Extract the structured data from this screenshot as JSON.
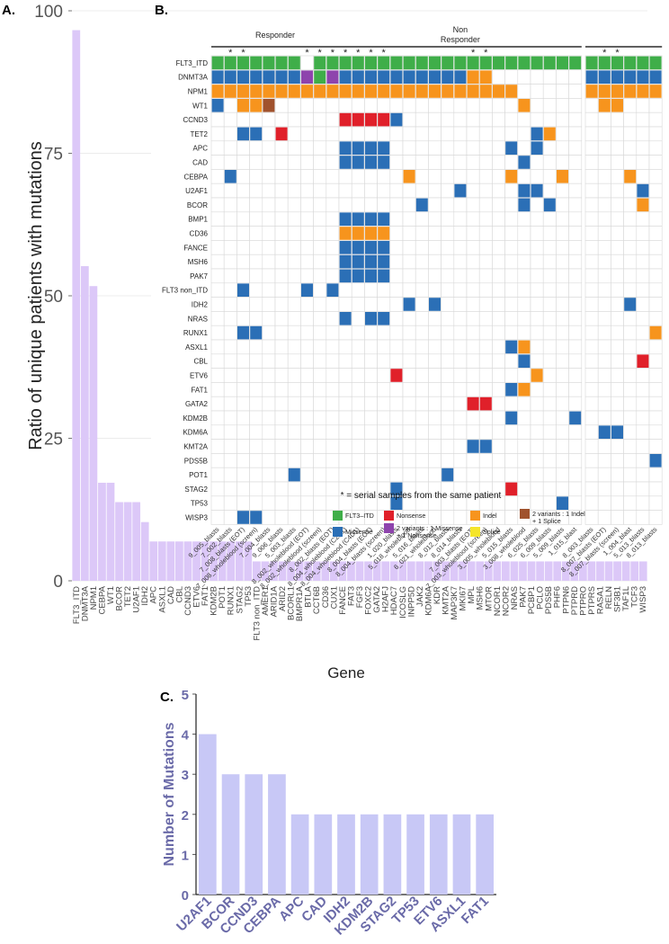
{
  "panel_labels": {
    "a": "A.",
    "b": "B.",
    "c": "C."
  },
  "chart_data": [
    {
      "type": "bar",
      "panel": "A.",
      "title": "",
      "xlabel": "",
      "ylabel": "Ratio of unique patients with mutations",
      "ylim": [
        0,
        100
      ],
      "yticks": [
        0,
        25,
        50,
        75,
        100
      ],
      "bar_color": "#dcc8f8",
      "grid": true,
      "categories": [
        "FLT3_ITD",
        "DNMT3A",
        "NPM1",
        "CEBPA",
        "WT1",
        "BCOR",
        "TET2",
        "U2AF1",
        "IDH2",
        "APC",
        "ASXL1",
        "CAD",
        "CBL",
        "CCND3",
        "ETV6",
        "FAT1",
        "KDM2B",
        "POT1",
        "RUNX1",
        "STAG2",
        "TP53",
        "FLT3 non_ITD",
        "AMER1",
        "ARID1A",
        "ARID2",
        "BCORL1",
        "BMPR1A",
        "BTLA",
        "CCT6B",
        "CD36",
        "CUX1",
        "FANCE",
        "FAT3",
        "FGF3",
        "FOXC2",
        "GATA2",
        "H2AFJ",
        "HDAC7",
        "ICOSLG",
        "INPP5D",
        "JAK2",
        "KDM6A",
        "KDR",
        "KMT2A",
        "MAP3K7",
        "MKI67",
        "MPL",
        "MSH6",
        "MTOR",
        "NCOR1",
        "NCOR2",
        "NRAS",
        "PAK7",
        "PCBP1",
        "PCLO",
        "PDS5B",
        "PHF6",
        "PTPN6",
        "PTPRD",
        "PTPRO",
        "PTPRS",
        "RASA1",
        "RELN",
        "SF3B1",
        "TAF1L",
        "TCF3",
        "WISP3"
      ],
      "values": [
        96.6,
        55.2,
        51.7,
        17.2,
        17.2,
        13.8,
        13.8,
        13.8,
        10.3,
        6.9,
        6.9,
        6.9,
        6.9,
        6.9,
        6.9,
        6.9,
        6.9,
        6.9,
        6.9,
        6.9,
        6.9,
        3.4,
        3.4,
        3.4,
        3.4,
        3.4,
        3.4,
        3.4,
        3.4,
        3.4,
        3.4,
        3.4,
        3.4,
        3.4,
        3.4,
        3.4,
        3.4,
        3.4,
        3.4,
        3.4,
        3.4,
        3.4,
        3.4,
        3.4,
        3.4,
        3.4,
        3.4,
        3.4,
        3.4,
        3.4,
        3.4,
        3.4,
        3.4,
        3.4,
        3.4,
        3.4,
        3.4,
        3.4,
        3.4,
        3.4,
        3.4,
        3.4,
        3.4,
        3.4,
        3.4,
        3.4,
        3.4
      ]
    },
    {
      "type": "heatmap",
      "panel": "B.",
      "groups": [
        {
          "name": "Responder",
          "samples": [
            "9_005_blasts",
            "7_002_blasts",
            "7_008_blasts (EOT)",
            "7_008_wholeblood (screen)",
            "7_004_blasts",
            "9_006_blasts",
            "5_003_blasts",
            "8_002_wholeblood (EOT)",
            "8_002_wholeblood (screen)",
            "8_002_blasts (EOT)"
          ],
          "stars": [
            2,
            3,
            8,
            9,
            10
          ]
        },
        {
          "name": "Non\nResponder",
          "samples": [
            "8_004_wholeblood (C2D1)",
            "8_004_wholeblood (C4D1)",
            "8_004_blasts (EOT)",
            "8_004_blasts (screen)",
            "1_020_blasts",
            "5_018_wholeblood",
            "5_016_blasts",
            "6_021_wholeblood",
            "8_012_blasts",
            "8_014_blasts",
            "7_003_blasts (EOT)",
            "7_003_wholeblood (screen)",
            "3_005_wholeblood",
            "5_015_blasts",
            "3_008_wholeblood",
            "6_025_blasts",
            "6_009_blasts",
            "5_009_blasts",
            "1_015_blast"
          ],
          "stars": [
            1,
            2,
            3,
            4,
            11,
            12
          ]
        },
        {
          "name": "",
          "samples": [
            "8_003_blasts",
            "8_007_blasts (EOT)",
            "8_007_blasts (screen)",
            "1_004_blast",
            "5_013_blasts",
            "8_013_blasts"
          ],
          "stars": [
            2,
            3
          ]
        }
      ],
      "genes": [
        "FLT3_ITD",
        "DNMT3A",
        "NPM1",
        "WT1",
        "CCND3",
        "TET2",
        "APC",
        "CAD",
        "CEBPA",
        "U2AF1",
        "BCOR",
        "BMP1",
        "CD36",
        "FANCE",
        "MSH6",
        "PAK7",
        "FLT3 non_ITD",
        "IDH2",
        "NRAS",
        "RUNX1",
        "ASXL1",
        "CBL",
        "ETV6",
        "FAT1",
        "GATA2",
        "KDM2B",
        "KDM6A",
        "KMT2A",
        "PDS5B",
        "POT1",
        "STAG2",
        "TP53",
        "WISP3"
      ],
      "cells": {
        "FLT3_ITD": {
          "0": [
            1,
            2,
            3,
            4,
            5,
            6,
            7,
            9,
            10
          ],
          "1": [
            1,
            2,
            3,
            4,
            5,
            6,
            7,
            8,
            9,
            10,
            11,
            12,
            13,
            14,
            15,
            16,
            17,
            18,
            19
          ],
          "2": [
            1,
            2,
            3,
            4,
            5,
            6
          ]
        },
        "DNMT3A": {
          "0": [
            1,
            2,
            3,
            4,
            5,
            6,
            7,
            8,
            9,
            10
          ],
          "1": [
            1,
            2,
            3,
            4,
            5,
            6,
            7,
            8,
            9,
            10,
            11,
            12
          ],
          "2": [
            1,
            2,
            3,
            4,
            5,
            6
          ]
        },
        "NPM1": {
          "0": [
            1,
            2,
            3,
            4,
            5,
            6,
            7,
            8,
            9,
            10
          ],
          "1": [
            1,
            2,
            3,
            4,
            5,
            6,
            7,
            8,
            9,
            10,
            11,
            12,
            13,
            14
          ],
          "2": [
            1,
            2,
            3,
            4,
            5,
            6
          ]
        },
        "WT1": {
          "0": [
            1,
            3,
            4,
            5
          ],
          "1": [
            15
          ],
          "2": [
            2,
            3
          ]
        },
        "CCND3": {
          "1": [
            1,
            2,
            3,
            4,
            5
          ]
        },
        "TET2": {
          "0": [
            3,
            4,
            6
          ],
          "1": [
            16,
            17
          ]
        },
        "APC": {
          "1": [
            1,
            2,
            3,
            4,
            14,
            16
          ]
        },
        "CAD": {
          "1": [
            1,
            2,
            3,
            4,
            15
          ]
        },
        "CEBPA": {
          "0": [
            2
          ],
          "1": [
            6,
            14,
            18
          ],
          "2": [
            4
          ]
        },
        "U2AF1": {
          "1": [
            10,
            15,
            16
          ],
          "2": [
            5
          ]
        },
        "BCOR": {
          "1": [
            7,
            15,
            17
          ],
          "2": [
            5
          ]
        },
        "BMP1": {
          "1": [
            1,
            2,
            3,
            4
          ]
        },
        "CD36": {
          "1": [
            1,
            2,
            3,
            4
          ]
        },
        "FANCE": {
          "1": [
            1,
            2,
            3,
            4
          ]
        },
        "MSH6": {
          "1": [
            1,
            2,
            3,
            4
          ]
        },
        "PAK7": {
          "1": [
            1,
            2,
            3,
            4
          ]
        },
        "FLT3 non_ITD": {
          "0": [
            3,
            8,
            10
          ]
        },
        "IDH2": {
          "1": [
            6,
            8
          ],
          "2": [
            4
          ]
        },
        "NRAS": {
          "1": [
            1,
            3,
            4
          ]
        },
        "RUNX1": {
          "0": [
            3,
            4
          ],
          "2": [
            6
          ]
        },
        "ASXL1": {
          "1": [
            14,
            15
          ]
        },
        "CBL": {
          "1": [
            15
          ],
          "2": [
            5
          ]
        },
        "ETV6": {
          "1": [
            5,
            16
          ]
        },
        "FAT1": {
          "1": [
            14,
            15
          ]
        },
        "GATA2": {
          "1": [
            11,
            12
          ]
        },
        "KDM2B": {
          "1": [
            14,
            19
          ]
        },
        "KDM6A": {
          "2": [
            2,
            3
          ]
        },
        "KMT2A": {
          "1": [
            11,
            12
          ]
        },
        "PDS5B": {
          "2": [
            6
          ]
        },
        "POT1": {
          "0": [
            7
          ],
          "1": [
            9
          ]
        },
        "STAG2": {
          "1": [
            5,
            14
          ]
        },
        "TP53": {
          "1": [
            5,
            18
          ]
        },
        "WISP3": {
          "0": [
            3,
            4
          ]
        }
      },
      "legend": [
        {
          "label": "FLT3–ITD",
          "color": "#3fae49"
        },
        {
          "label": "Missense",
          "color": "#2b6fb6"
        },
        {
          "label": "Nonsense",
          "color": "#e0202a"
        },
        {
          "label": "2 variants : 1 Missense\n+ 1 Nonsense",
          "color": "#8e44ad"
        },
        {
          "label": "Indel",
          "color": "#f7941d"
        },
        {
          "label": "Splice",
          "color": "#f5e52a"
        },
        {
          "label": "2 variants : 1 Indel\n+ 1 Splice",
          "color": "#a0522d"
        }
      ],
      "note": "* = serial samples from the same patient"
    },
    {
      "type": "bar",
      "panel": "C.",
      "title": "Gene",
      "xlabel": "",
      "ylabel": "Number of Mutations",
      "ylim": [
        0,
        5
      ],
      "yticks": [
        0,
        1,
        2,
        3,
        4,
        5
      ],
      "bar_color": "#c8c8f6",
      "text_color": "#6a6aa8",
      "categories": [
        "U2AF1",
        "BCOR",
        "CCND3",
        "CEBPA",
        "APC",
        "CAD",
        "IDH2",
        "KDM2B",
        "STAG2",
        "TP53",
        "ETV6",
        "ASXL1",
        "FAT1"
      ],
      "values": [
        4,
        3,
        3,
        3,
        2,
        2,
        2,
        2,
        2,
        2,
        2,
        2,
        2
      ]
    }
  ]
}
